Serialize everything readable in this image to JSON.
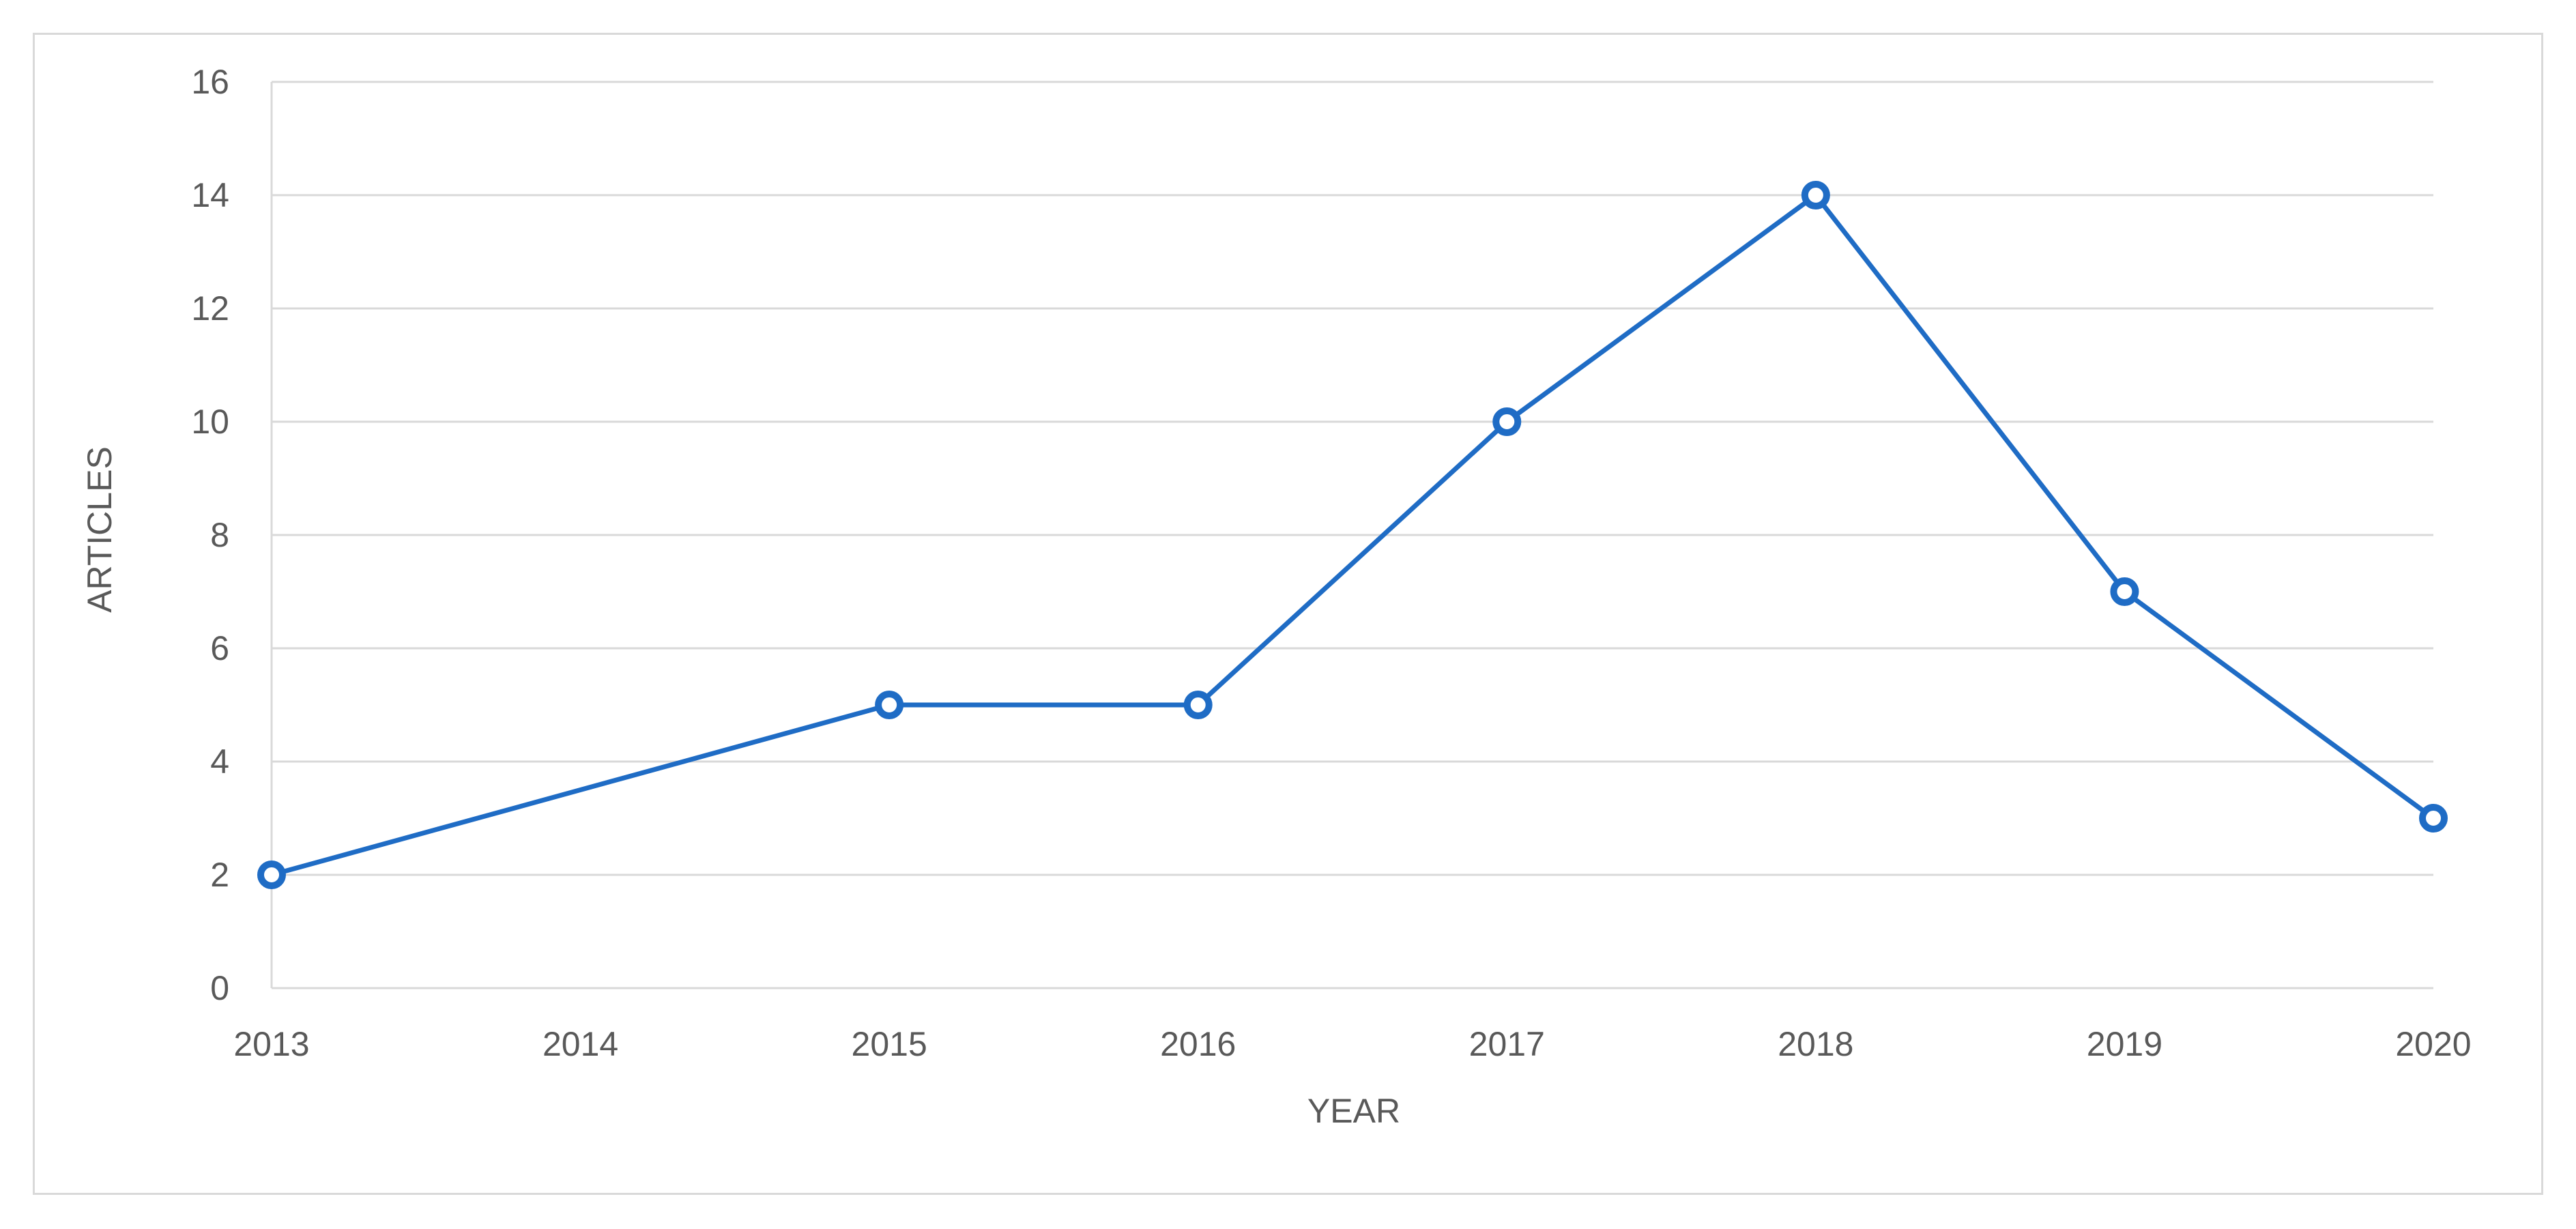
{
  "chart_data": {
    "type": "line",
    "title": "",
    "xlabel": "YEAR",
    "ylabel": "ARTICLES",
    "categories": [
      "2013",
      "2014",
      "2015",
      "2016",
      "2017",
      "2018",
      "2019",
      "2020"
    ],
    "series": [
      {
        "x": [
          "2013",
          "2015",
          "2016",
          "2017",
          "2018",
          "2019",
          "2020"
        ],
        "values": [
          2,
          5,
          5,
          10,
          14,
          7,
          3
        ],
        "color": "#1f6cc5"
      }
    ],
    "ylim": [
      0,
      16
    ],
    "yticks": [
      0,
      2,
      4,
      6,
      8,
      10,
      12,
      14,
      16
    ],
    "grid": true,
    "legend": "none",
    "colors": {
      "line": "#1f6cc5",
      "grid": "#d9d9d9",
      "axis_text": "#595959"
    }
  }
}
